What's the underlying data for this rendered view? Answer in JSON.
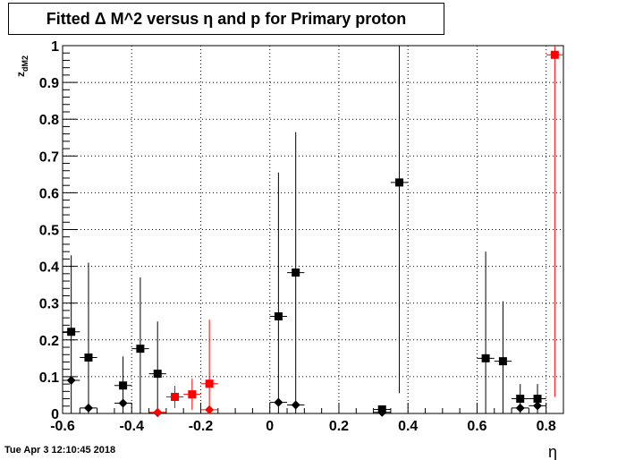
{
  "chart_data": {
    "type": "scatter",
    "title": "Fitted Δ M^2 versus η and p for Primary proton",
    "xlabel": "η",
    "ylabel": "z_dM2",
    "xlim": [
      -0.6,
      0.85
    ],
    "ylim": [
      0,
      1
    ],
    "xticks": [
      "-0.6",
      "-0.4",
      "-0.2",
      "0",
      "0.2",
      "0.4",
      "0.6",
      "0.8"
    ],
    "xtick_values": [
      -0.6,
      -0.4,
      -0.2,
      0,
      0.2,
      0.4,
      0.6,
      0.8
    ],
    "yticks": [
      "0",
      "0.1",
      "0.2",
      "0.3",
      "0.4",
      "0.5",
      "0.6",
      "0.7",
      "0.8",
      "0.9",
      "1"
    ],
    "ytick_values": [
      0,
      0.1,
      0.2,
      0.3,
      0.4,
      0.5,
      0.6,
      0.7,
      0.8,
      0.9,
      1
    ],
    "grid": true,
    "series": [
      {
        "marker": "square",
        "color": "#000000",
        "points": [
          {
            "x": -0.575,
            "y": 0.222,
            "lo": 0.0,
            "hi": 0.43
          },
          {
            "x": -0.525,
            "y": 0.152,
            "lo": 0.0,
            "hi": 0.41
          },
          {
            "x": -0.425,
            "y": 0.076,
            "lo": 0.0,
            "hi": 0.155
          },
          {
            "x": -0.375,
            "y": 0.176,
            "lo": 0.0,
            "hi": 0.37
          },
          {
            "x": -0.325,
            "y": 0.108,
            "lo": 0.0,
            "hi": 0.25
          },
          {
            "x": 0.025,
            "y": 0.264,
            "lo": 0.0,
            "hi": 0.655
          },
          {
            "x": 0.075,
            "y": 0.383,
            "lo": 0.0,
            "hi": 0.765
          },
          {
            "x": 0.325,
            "y": 0.011,
            "lo": 0.0,
            "hi": 0.022
          },
          {
            "x": 0.375,
            "y": 0.628,
            "lo": 0.055,
            "hi": 1.0
          },
          {
            "x": 0.625,
            "y": 0.15,
            "lo": 0.0,
            "hi": 0.44
          },
          {
            "x": 0.675,
            "y": 0.142,
            "lo": 0.0,
            "hi": 0.305
          },
          {
            "x": 0.725,
            "y": 0.04,
            "lo": 0.0,
            "hi": 0.08
          },
          {
            "x": 0.775,
            "y": 0.04,
            "lo": 0.0,
            "hi": 0.08
          }
        ]
      },
      {
        "marker": "square",
        "color": "#ff0000",
        "points": [
          {
            "x": -0.275,
            "y": 0.045,
            "lo": 0.015,
            "hi": 0.075
          },
          {
            "x": -0.225,
            "y": 0.052,
            "lo": 0.01,
            "hi": 0.095
          },
          {
            "x": -0.175,
            "y": 0.081,
            "lo": 0.0,
            "hi": 0.255
          },
          {
            "x": 0.825,
            "y": 0.975,
            "lo": 0.045,
            "hi": 1.0
          }
        ]
      },
      {
        "marker": "diamond",
        "color": "#000000",
        "points": [
          {
            "x": -0.575,
            "y": 0.09
          },
          {
            "x": -0.525,
            "y": 0.015
          },
          {
            "x": -0.425,
            "y": 0.028
          },
          {
            "x": -0.325,
            "y": 0.002
          },
          {
            "x": 0.025,
            "y": 0.03
          },
          {
            "x": 0.075,
            "y": 0.023
          },
          {
            "x": 0.325,
            "y": 0.003
          },
          {
            "x": 0.725,
            "y": 0.015
          },
          {
            "x": 0.775,
            "y": 0.021
          }
        ]
      },
      {
        "marker": "diamond",
        "color": "#ff0000",
        "points": [
          {
            "x": -0.325,
            "y": 0.003
          },
          {
            "x": -0.175,
            "y": 0.01
          }
        ]
      }
    ]
  },
  "footer": {
    "timestamp": "Tue Apr  3 12:10:45 2018"
  }
}
